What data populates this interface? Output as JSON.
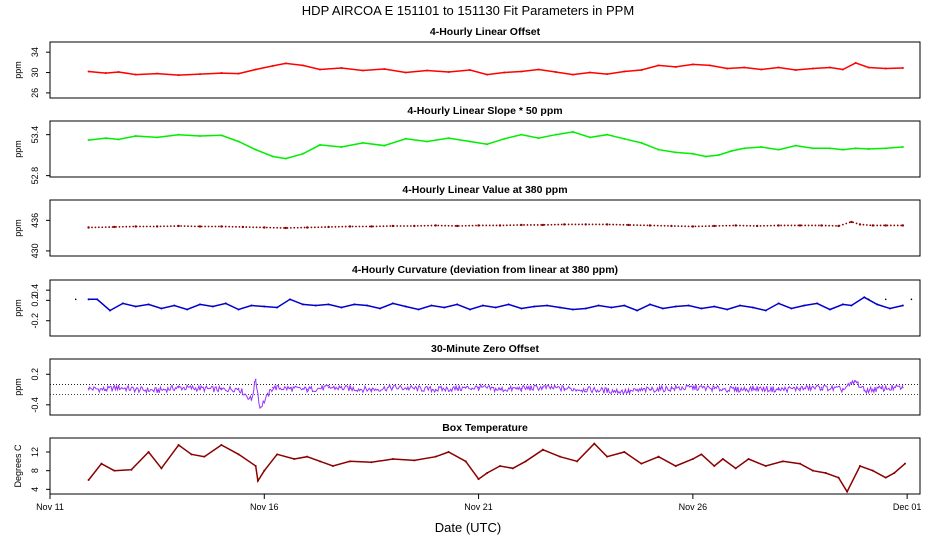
{
  "page_title": "HDP   AIRCOA E   151101 to 151130   Fit Parameters in PPM",
  "xlabel": "Date (UTC)",
  "x_ticks": [
    "Nov 11",
    "Nov 16",
    "Nov 21",
    "Nov 26",
    "Dec 01"
  ],
  "chart_data": [
    {
      "type": "line",
      "title": "4-Hourly Linear Offset",
      "ylabel": "ppm",
      "yticks": [
        "26",
        "30",
        "34"
      ],
      "ylim": [
        25,
        36
      ],
      "color": "#ff0000",
      "style": "line",
      "x": [
        11.9,
        12.3,
        12.6,
        13.0,
        13.5,
        14.0,
        14.5,
        15.0,
        15.4,
        15.8,
        16.2,
        16.5,
        16.9,
        17.3,
        17.8,
        18.3,
        18.8,
        19.3,
        19.8,
        20.3,
        20.8,
        21.2,
        21.6,
        22.0,
        22.4,
        22.8,
        23.2,
        23.6,
        24.0,
        24.4,
        24.8,
        25.2,
        25.6,
        26.0,
        26.4,
        26.8,
        27.2,
        27.6,
        28.0,
        28.4,
        28.8,
        29.2,
        29.5,
        29.8,
        30.1,
        30.5,
        30.9
      ],
      "y": [
        30.2,
        29.9,
        30.1,
        29.6,
        29.8,
        29.5,
        29.7,
        29.9,
        29.8,
        30.6,
        31.3,
        31.8,
        31.4,
        30.6,
        30.9,
        30.4,
        30.7,
        30.0,
        30.4,
        30.1,
        30.5,
        29.6,
        30.0,
        30.2,
        30.6,
        30.1,
        29.6,
        30.0,
        29.7,
        30.2,
        30.5,
        31.4,
        31.1,
        31.6,
        31.4,
        30.8,
        31.0,
        30.6,
        31.0,
        30.5,
        30.8,
        31.0,
        30.6,
        31.9,
        31.0,
        30.8,
        30.9
      ]
    },
    {
      "type": "line",
      "title": "4-Hourly Linear Slope * 50 ppm",
      "ylabel": "ppm",
      "yticks": [
        "52.8",
        "53.4"
      ],
      "ylim": [
        52.78,
        53.6
      ],
      "color": "#00ee00",
      "style": "line",
      "x": [
        11.9,
        12.3,
        12.6,
        13.0,
        13.5,
        14.0,
        14.5,
        15.0,
        15.4,
        15.8,
        16.2,
        16.5,
        16.9,
        17.3,
        17.8,
        18.3,
        18.8,
        19.3,
        19.8,
        20.3,
        20.8,
        21.2,
        21.6,
        22.0,
        22.4,
        22.8,
        23.2,
        23.6,
        24.0,
        24.4,
        24.8,
        25.2,
        25.6,
        26.0,
        26.3,
        26.6,
        26.9,
        27.2,
        27.6,
        28.0,
        28.4,
        28.8,
        29.2,
        29.5,
        29.8,
        30.1,
        30.5,
        30.9
      ],
      "y": [
        53.32,
        53.35,
        53.33,
        53.38,
        53.36,
        53.4,
        53.38,
        53.39,
        53.3,
        53.18,
        53.08,
        53.05,
        53.12,
        53.25,
        53.22,
        53.28,
        53.24,
        53.34,
        53.3,
        53.35,
        53.3,
        53.26,
        53.34,
        53.4,
        53.35,
        53.4,
        53.44,
        53.36,
        53.4,
        53.34,
        53.28,
        53.18,
        53.14,
        53.12,
        53.08,
        53.1,
        53.16,
        53.2,
        53.22,
        53.18,
        53.24,
        53.2,
        53.2,
        53.18,
        53.2,
        53.19,
        53.2,
        53.22
      ]
    },
    {
      "type": "scatter",
      "title": "4-Hourly Linear Value at 380 ppm",
      "ylabel": "ppm",
      "yticks": [
        "430",
        "436"
      ],
      "ylim": [
        429,
        440
      ],
      "color": "#8b0000",
      "style": "dots",
      "x": [
        11.9,
        12.5,
        13.0,
        13.5,
        14.0,
        14.5,
        15.0,
        15.5,
        16.0,
        16.5,
        17.0,
        17.5,
        18.0,
        18.5,
        19.0,
        19.5,
        20.0,
        20.5,
        21.0,
        21.5,
        22.0,
        22.5,
        23.0,
        23.5,
        24.0,
        24.5,
        25.0,
        25.5,
        26.0,
        26.5,
        27.0,
        27.5,
        28.0,
        28.5,
        29.0,
        29.4,
        29.7,
        29.9,
        30.2,
        30.5,
        30.9
      ],
      "y": [
        434.6,
        434.7,
        434.8,
        434.8,
        434.9,
        434.8,
        434.8,
        434.7,
        434.6,
        434.5,
        434.6,
        434.7,
        434.8,
        434.8,
        434.9,
        434.9,
        435.0,
        434.9,
        435.0,
        435.0,
        435.1,
        435.1,
        435.2,
        435.2,
        435.2,
        435.1,
        435.0,
        434.9,
        434.8,
        434.9,
        435.0,
        434.9,
        435.0,
        435.0,
        435.0,
        434.9,
        435.7,
        435.2,
        435.0,
        435.0,
        435.0
      ]
    },
    {
      "type": "line",
      "title": "4-Hourly Curvature (deviation from linear at 380 ppm)",
      "ylabel": "ppm",
      "yticks": [
        "-0.2",
        "0.2",
        "0.4"
      ],
      "ylim": [
        -0.5,
        0.6
      ],
      "color": "#0000cc",
      "style": "line",
      "x": [
        11.9,
        12.1,
        12.4,
        12.7,
        13.0,
        13.3,
        13.6,
        13.9,
        14.2,
        14.5,
        14.8,
        15.1,
        15.4,
        15.7,
        16.0,
        16.3,
        16.6,
        16.9,
        17.2,
        17.5,
        17.8,
        18.1,
        18.4,
        18.7,
        19.0,
        19.3,
        19.6,
        19.9,
        20.2,
        20.5,
        20.8,
        21.1,
        21.4,
        21.7,
        22.0,
        22.3,
        22.6,
        22.9,
        23.2,
        23.5,
        23.8,
        24.1,
        24.4,
        24.7,
        25.0,
        25.3,
        25.6,
        25.9,
        26.2,
        26.5,
        26.8,
        27.1,
        27.4,
        27.7,
        28.0,
        28.3,
        28.6,
        28.9,
        29.2,
        29.5,
        29.7,
        30.0,
        30.3,
        30.6,
        30.9
      ],
      "y": [
        0.22,
        0.22,
        0.0,
        0.14,
        0.08,
        0.12,
        0.04,
        0.1,
        0.02,
        0.12,
        0.08,
        0.14,
        0.02,
        0.1,
        0.08,
        0.06,
        0.22,
        0.12,
        0.1,
        0.12,
        0.06,
        0.12,
        0.1,
        0.04,
        0.14,
        0.08,
        0.02,
        0.1,
        0.06,
        0.12,
        0.02,
        0.1,
        0.06,
        0.12,
        0.04,
        0.08,
        0.1,
        0.06,
        0.02,
        0.04,
        0.1,
        0.06,
        0.1,
        0.0,
        0.12,
        0.04,
        0.08,
        0.1,
        0.04,
        0.08,
        0.02,
        0.1,
        0.06,
        0.0,
        0.14,
        0.04,
        0.1,
        0.14,
        0.02,
        0.12,
        0.1,
        0.26,
        0.12,
        0.04,
        0.1
      ]
    },
    {
      "type": "line",
      "title": "30-Minute Zero Offset",
      "ylabel": "ppm",
      "yticks": [
        "-0.4",
        "0.2"
      ],
      "ylim": [
        -0.6,
        0.5
      ],
      "color": "#9933ff",
      "style": "noisy",
      "reference_lines": [
        0.0,
        -0.2
      ],
      "x": [
        11.9,
        12.3,
        12.6,
        13.0,
        13.5,
        14.0,
        14.5,
        15.0,
        15.4,
        15.7,
        15.8,
        15.9,
        16.2,
        16.6,
        17.0,
        17.5,
        18.0,
        18.5,
        19.0,
        19.5,
        20.0,
        20.5,
        21.0,
        21.5,
        22.0,
        22.5,
        23.0,
        23.5,
        24.0,
        24.5,
        25.0,
        25.5,
        26.0,
        26.5,
        27.0,
        27.5,
        28.0,
        28.5,
        29.0,
        29.5,
        29.8,
        30.0,
        30.4,
        30.9
      ],
      "y": [
        -0.08,
        -0.1,
        -0.06,
        -0.1,
        -0.12,
        -0.06,
        -0.08,
        -0.1,
        -0.08,
        -0.3,
        0.1,
        -0.46,
        -0.06,
        -0.08,
        -0.1,
        -0.06,
        -0.08,
        -0.1,
        -0.06,
        -0.08,
        -0.1,
        -0.08,
        -0.06,
        -0.1,
        -0.08,
        -0.06,
        -0.08,
        -0.1,
        -0.12,
        -0.14,
        -0.1,
        -0.08,
        -0.06,
        -0.08,
        -0.1,
        -0.08,
        -0.1,
        -0.08,
        -0.06,
        -0.1,
        0.06,
        -0.12,
        -0.08,
        -0.06
      ]
    },
    {
      "type": "line",
      "title": "Box Temperature",
      "ylabel": "Degrees C",
      "yticks": [
        "4",
        "8",
        "12"
      ],
      "ylim": [
        3,
        15
      ],
      "color": "#8b0000",
      "style": "line",
      "x": [
        11.9,
        12.2,
        12.5,
        12.9,
        13.3,
        13.6,
        14.0,
        14.3,
        14.6,
        15.0,
        15.4,
        15.8,
        15.85,
        16.0,
        16.3,
        16.7,
        17.0,
        17.3,
        17.6,
        18.0,
        18.5,
        19.0,
        19.5,
        20.0,
        20.3,
        20.7,
        21.0,
        21.2,
        21.5,
        21.8,
        22.1,
        22.5,
        22.9,
        23.3,
        23.7,
        24.0,
        24.4,
        24.8,
        25.2,
        25.6,
        26.0,
        26.2,
        26.5,
        26.7,
        27.0,
        27.3,
        27.7,
        28.1,
        28.5,
        28.8,
        29.1,
        29.4,
        29.6,
        29.9,
        30.2,
        30.5,
        30.7,
        30.95
      ],
      "y": [
        6.0,
        9.5,
        8.0,
        8.2,
        12.0,
        8.5,
        13.5,
        11.5,
        11.0,
        13.5,
        11.5,
        9.0,
        5.8,
        8.0,
        11.5,
        10.5,
        11.0,
        10.0,
        9.0,
        10.0,
        9.8,
        10.5,
        10.2,
        11.0,
        12.0,
        10.0,
        6.2,
        7.5,
        9.0,
        8.5,
        10.0,
        12.5,
        11.0,
        10.0,
        13.8,
        11.0,
        12.0,
        9.5,
        11.0,
        9.0,
        10.5,
        11.5,
        9.0,
        10.5,
        8.5,
        10.5,
        9.0,
        10.0,
        9.5,
        8.0,
        7.5,
        6.5,
        3.5,
        9.0,
        8.0,
        6.5,
        7.5,
        9.5
      ]
    }
  ]
}
